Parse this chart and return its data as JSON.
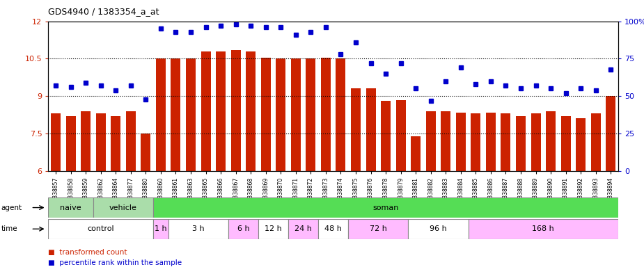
{
  "title": "GDS4940 / 1383354_a_at",
  "samples": [
    "GSM338857",
    "GSM338858",
    "GSM338859",
    "GSM338862",
    "GSM338864",
    "GSM338877",
    "GSM338880",
    "GSM338860",
    "GSM338861",
    "GSM338863",
    "GSM338865",
    "GSM338866",
    "GSM338867",
    "GSM338868",
    "GSM338869",
    "GSM338870",
    "GSM338871",
    "GSM338872",
    "GSM338873",
    "GSM338874",
    "GSM338875",
    "GSM338876",
    "GSM338878",
    "GSM338879",
    "GSM338881",
    "GSM338882",
    "GSM338883",
    "GSM338884",
    "GSM338885",
    "GSM338886",
    "GSM338887",
    "GSM338888",
    "GSM338889",
    "GSM338890",
    "GSM338891",
    "GSM338892",
    "GSM338893",
    "GSM338894"
  ],
  "bar_values": [
    8.3,
    8.2,
    8.4,
    8.3,
    8.2,
    8.4,
    7.5,
    10.5,
    10.5,
    10.5,
    10.8,
    10.8,
    10.85,
    10.8,
    10.55,
    10.5,
    10.5,
    10.5,
    10.55,
    10.5,
    9.3,
    9.3,
    8.8,
    8.85,
    7.4,
    8.4,
    8.4,
    8.35,
    8.3,
    8.35,
    8.3,
    8.2,
    8.3,
    8.4,
    8.2,
    8.1,
    8.3,
    9.0
  ],
  "dot_values": [
    57,
    56,
    59,
    57,
    54,
    57,
    48,
    95,
    93,
    93,
    96,
    97,
    98,
    97,
    96,
    96,
    91,
    93,
    96,
    78,
    86,
    72,
    65,
    72,
    55,
    47,
    60,
    69,
    58,
    60,
    57,
    55,
    57,
    55,
    52,
    55,
    54,
    68
  ],
  "ylim_left": [
    6,
    12
  ],
  "ylim_right": [
    0,
    100
  ],
  "yticks_left": [
    6,
    7.5,
    9,
    10.5,
    12
  ],
  "yticks_right": [
    0,
    25,
    50,
    75,
    100
  ],
  "bar_color": "#cc2200",
  "dot_color": "#0000cc",
  "agent_groups": [
    {
      "label": "naive",
      "start": 0,
      "end": 3,
      "color": "#aaddaa"
    },
    {
      "label": "vehicle",
      "start": 3,
      "end": 7,
      "color": "#aaddaa"
    },
    {
      "label": "soman",
      "start": 7,
      "end": 38,
      "color": "#55dd55"
    }
  ],
  "time_groups": [
    {
      "label": "control",
      "start": 0,
      "end": 7,
      "color": "#ffffff"
    },
    {
      "label": "1 h",
      "start": 7,
      "end": 8,
      "color": "#ffbbff"
    },
    {
      "label": "3 h",
      "start": 8,
      "end": 12,
      "color": "#ffffff"
    },
    {
      "label": "6 h",
      "start": 12,
      "end": 14,
      "color": "#ffbbff"
    },
    {
      "label": "12 h",
      "start": 14,
      "end": 16,
      "color": "#ffffff"
    },
    {
      "label": "24 h",
      "start": 16,
      "end": 18,
      "color": "#ffbbff"
    },
    {
      "label": "48 h",
      "start": 18,
      "end": 20,
      "color": "#ffffff"
    },
    {
      "label": "72 h",
      "start": 20,
      "end": 24,
      "color": "#ffbbff"
    },
    {
      "label": "96 h",
      "start": 24,
      "end": 28,
      "color": "#ffffff"
    },
    {
      "label": "168 h",
      "start": 28,
      "end": 38,
      "color": "#ffbbff"
    }
  ],
  "n_bars": 38
}
